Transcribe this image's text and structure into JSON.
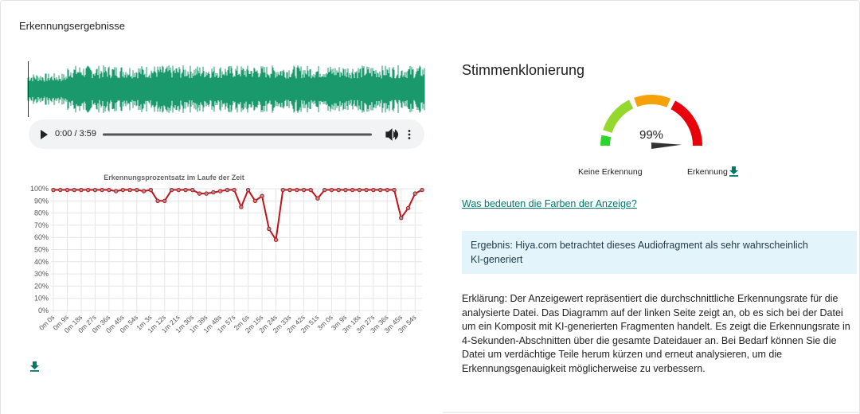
{
  "header": {
    "title": "Erkennungsergebnisse"
  },
  "audio": {
    "time": "0:00 / 3:59"
  },
  "chart_data": {
    "type": "line",
    "title": "Erkennungsprozentsatz im Laufe der Zeit",
    "categories": [
      "0m 0s",
      null,
      "0m 9s",
      null,
      "0m 18s",
      null,
      "0m 27s",
      null,
      "0m 36s",
      null,
      "0m 45s",
      null,
      "0m 54s",
      null,
      "1m 3s",
      null,
      "1m 12s",
      null,
      "1m 21s",
      null,
      "1m 30s",
      null,
      "1m 39s",
      null,
      "1m 48s",
      null,
      "1m 57s",
      null,
      "2m 6s",
      null,
      "2m 15s",
      null,
      "2m 24s",
      null,
      "2m 33s",
      null,
      "2m 42s",
      null,
      "2m 51s",
      null,
      "3m 0s",
      null,
      "3m 9s",
      null,
      "3m 18s",
      null,
      "3m 27s",
      null,
      "3m 36s",
      null,
      "3m 45s",
      null,
      "3m 54s",
      null
    ],
    "values": [
      99,
      99,
      99,
      99,
      99,
      99,
      99,
      99,
      99,
      98,
      99,
      99,
      99,
      98,
      99,
      90,
      90,
      99,
      99,
      99,
      99,
      96,
      96,
      97,
      98,
      99,
      99,
      85,
      99,
      90,
      94,
      67,
      58,
      99,
      99,
      99,
      99,
      99,
      92,
      99,
      99,
      99,
      99,
      99,
      99,
      99,
      99,
      99,
      99,
      99,
      76,
      84,
      96,
      99
    ],
    "color": "#c0141a",
    "ylim": [
      0,
      100
    ],
    "yticks": [
      {
        "value": 0,
        "label": "0%"
      },
      {
        "value": 10,
        "label": "10%"
      },
      {
        "value": 20,
        "label": "20%"
      },
      {
        "value": 30,
        "label": "30%"
      },
      {
        "value": 40,
        "label": "40%"
      },
      {
        "value": 50,
        "label": "50%"
      },
      {
        "value": 60,
        "label": "60%"
      },
      {
        "value": 70,
        "label": "70%"
      },
      {
        "value": 80,
        "label": "80%"
      },
      {
        "value": 90,
        "label": "90%"
      },
      {
        "value": 100,
        "label": "100%"
      }
    ],
    "grid": true
  },
  "panel": {
    "title": "Stimmenklonierung",
    "gauge": {
      "value": 99,
      "label": "99%",
      "min_label": "Keine Erkennung",
      "max_label": "Erkennung"
    },
    "link": "Was bedeuten die Farben der Anzeige?",
    "result": "Ergebnis: Hiya.com betrachtet dieses Audiofragment als sehr wahrscheinlich KI-generiert",
    "explanation": "Erklärung: Der Anzeigewert repräsentiert die durchschnittliche Erkennungsrate für die analysierte Datei. Das Diagramm auf der linken Seite zeigt an, ob es sich bei der Datei um ein Komposit mit KI-generierten Fragmenten handelt. Es zeigt die Erkennungsrate in 4-Sekunden-Abschnitten über die gesamte Dateidauer an. Bei Bedarf können Sie die Datei um verdächtige Teile herum kürzen und erneut analysieren, um die Erkennungsgenauigkeit möglicherweise zu verbessern."
  }
}
